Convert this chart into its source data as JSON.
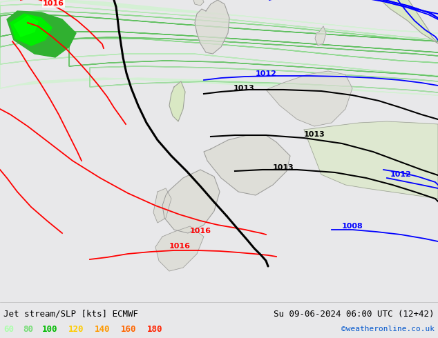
{
  "title_left": "Jet stream/SLP [kts] ECMWF",
  "title_right": "Su 09-06-2024 06:00 UTC (12+42)",
  "credit": "©weatheronline.co.uk",
  "legend_values": [
    "60",
    "80",
    "100",
    "120",
    "140",
    "160",
    "180"
  ],
  "legend_colors": [
    "#aaffaa",
    "#77dd77",
    "#00bb00",
    "#ffcc00",
    "#ff9900",
    "#ff6600",
    "#ff2200"
  ],
  "bg_color": "#e8e8e8",
  "fig_width": 6.34,
  "fig_height": 4.9,
  "dpi": 100
}
